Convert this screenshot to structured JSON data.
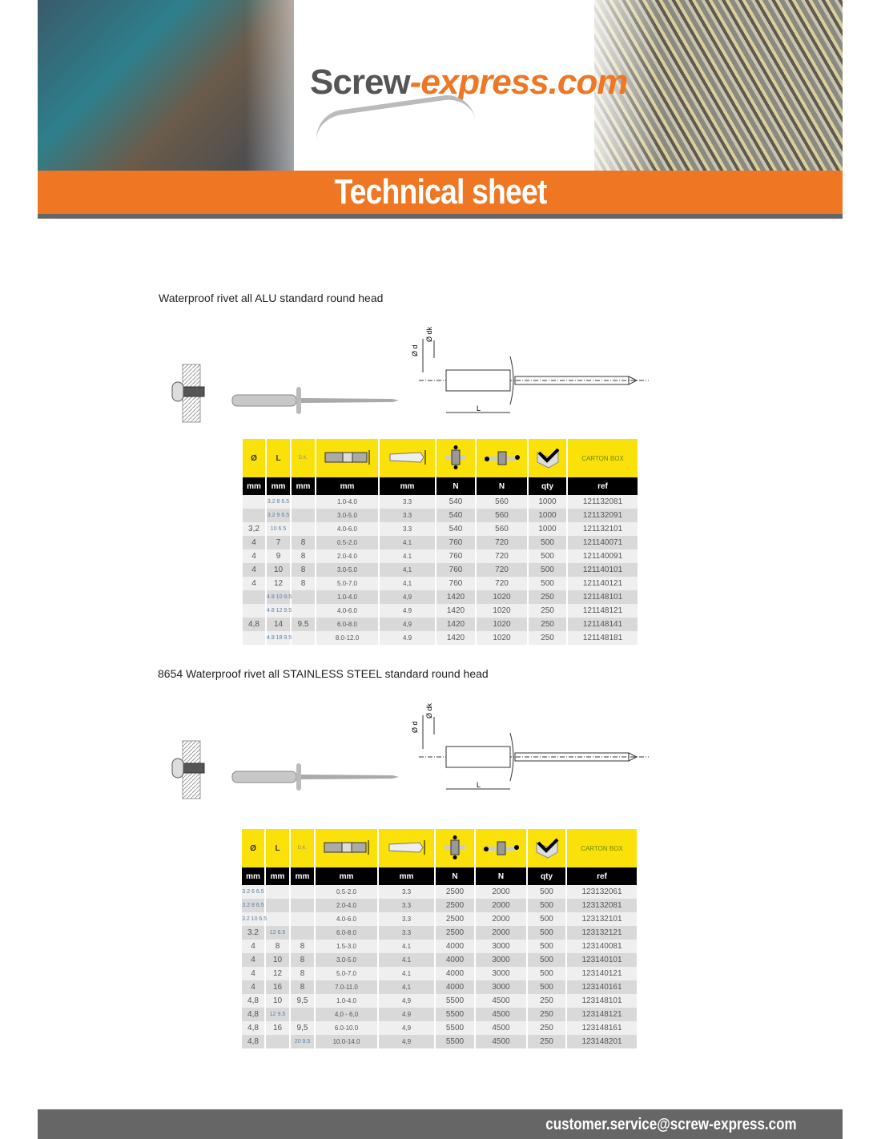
{
  "header": {
    "logo_main": "Screw",
    "logo_suffix": "-express.com",
    "banner_title": "Technical sheet"
  },
  "colors": {
    "orange": "#ef7622",
    "yellow": "#fbe10a",
    "gray": "#666666"
  },
  "drawing_labels": {
    "d": "Ø d",
    "dk": "Ø dk",
    "L": "L"
  },
  "table_header": {
    "c0": "Ø",
    "c1": "L",
    "c2": "D.K.",
    "c8": "CARTON BOX",
    "icons": [
      "grip-range-icon",
      "drill-hole-icon",
      "tensile-strength-icon",
      "shear-strength-icon",
      "box-icon"
    ],
    "units": [
      "mm",
      "mm",
      "mm",
      "mm",
      "mm",
      "N",
      "N",
      "qty",
      "ref"
    ]
  },
  "section1": {
    "title": "Waterproof rivet all ALU standard round head",
    "rows": [
      [
        "",
        "3.2 8 6.5",
        "",
        "1.0-4.0",
        "3.3",
        "540",
        "560",
        "1000",
        "121132081"
      ],
      [
        "",
        "3.2 9 6.5",
        "",
        "3.0-5.0",
        "3.3",
        "540",
        "560",
        "1000",
        "121132091"
      ],
      [
        "3,2",
        "10 6.5",
        "",
        "4.0-6.0",
        "3.3",
        "540",
        "560",
        "1000",
        "121132101"
      ],
      [
        "4",
        "7",
        "8",
        "0.5-2.0",
        "4.1",
        "760",
        "720",
        "500",
        "121140071"
      ],
      [
        "4",
        "9",
        "8",
        "2.0-4.0",
        "4.1",
        "760",
        "720",
        "500",
        "121140091"
      ],
      [
        "4",
        "10",
        "8",
        "3.0-5.0",
        "4,1",
        "760",
        "720",
        "500",
        "121140101"
      ],
      [
        "4",
        "12",
        "8",
        "5.0-7.0",
        "4,1",
        "760",
        "720",
        "500",
        "121140121"
      ],
      [
        "",
        "4.8 10 9.5",
        "",
        "1.0-4.0",
        "4,9",
        "1420",
        "1020",
        "250",
        "121148101"
      ],
      [
        "",
        "4.8 12 9.5",
        "",
        "4.0-6.0",
        "4.9",
        "1420",
        "1020",
        "250",
        "121148121"
      ],
      [
        "4,8",
        "14",
        "9.5",
        "6.0-8.0",
        "4,9",
        "1420",
        "1020",
        "250",
        "121148141"
      ],
      [
        "",
        "4.8 18 9.5",
        "",
        "8.0-12.0",
        "4.9",
        "1420",
        "1020",
        "250",
        "121148181"
      ]
    ]
  },
  "section2": {
    "title": "8654 Waterproof rivet all STAINLESS STEEL standard round head",
    "rows": [
      [
        "3.2 6 6.5",
        "",
        "",
        "0.5-2.0",
        "3.3",
        "2500",
        "2000",
        "500",
        "123132061"
      ],
      [
        "3.2 8 6.5",
        "",
        "",
        "2.0-4.0",
        "3.3",
        "2500",
        "2000",
        "500",
        "123132081"
      ],
      [
        "3.2 10 6.5",
        "",
        "",
        "4.0-6.0",
        "3.3",
        "2500",
        "2000",
        "500",
        "123132101"
      ],
      [
        "3.2",
        "12 6.5",
        "",
        "6.0-8.0",
        "3.3",
        "2500",
        "2000",
        "500",
        "123132121"
      ],
      [
        "4",
        "8",
        "8",
        "1.5-3.0",
        "4.1",
        "4000",
        "3000",
        "500",
        "123140081"
      ],
      [
        "4",
        "10",
        "8",
        "3.0-5.0",
        "4.1",
        "4000",
        "3000",
        "500",
        "123140101"
      ],
      [
        "4",
        "12",
        "8",
        "5.0-7.0",
        "4.1",
        "4000",
        "3000",
        "500",
        "123140121"
      ],
      [
        "4",
        "16",
        "8",
        "7.0-11.0",
        "4,1",
        "4000",
        "3000",
        "500",
        "123140161"
      ],
      [
        "4,8",
        "10",
        "9,5",
        "1.0-4.0",
        "4,9",
        "5500",
        "4500",
        "250",
        "123148101"
      ],
      [
        "4,8",
        "12 9.5",
        "",
        "4,0 - 6,0",
        "4.9",
        "5500",
        "4500",
        "250",
        "123148121"
      ],
      [
        "4,8",
        "16",
        "9,5",
        "6.0-10.0",
        "4,9",
        "5500",
        "4500",
        "250",
        "123148161"
      ],
      [
        "4,8",
        "",
        "20 9.5",
        "10.0-14.0",
        "4,9",
        "5500",
        "4500",
        "250",
        "123148201"
      ]
    ]
  },
  "footer": {
    "email": "customer.service@screw-express.com"
  }
}
